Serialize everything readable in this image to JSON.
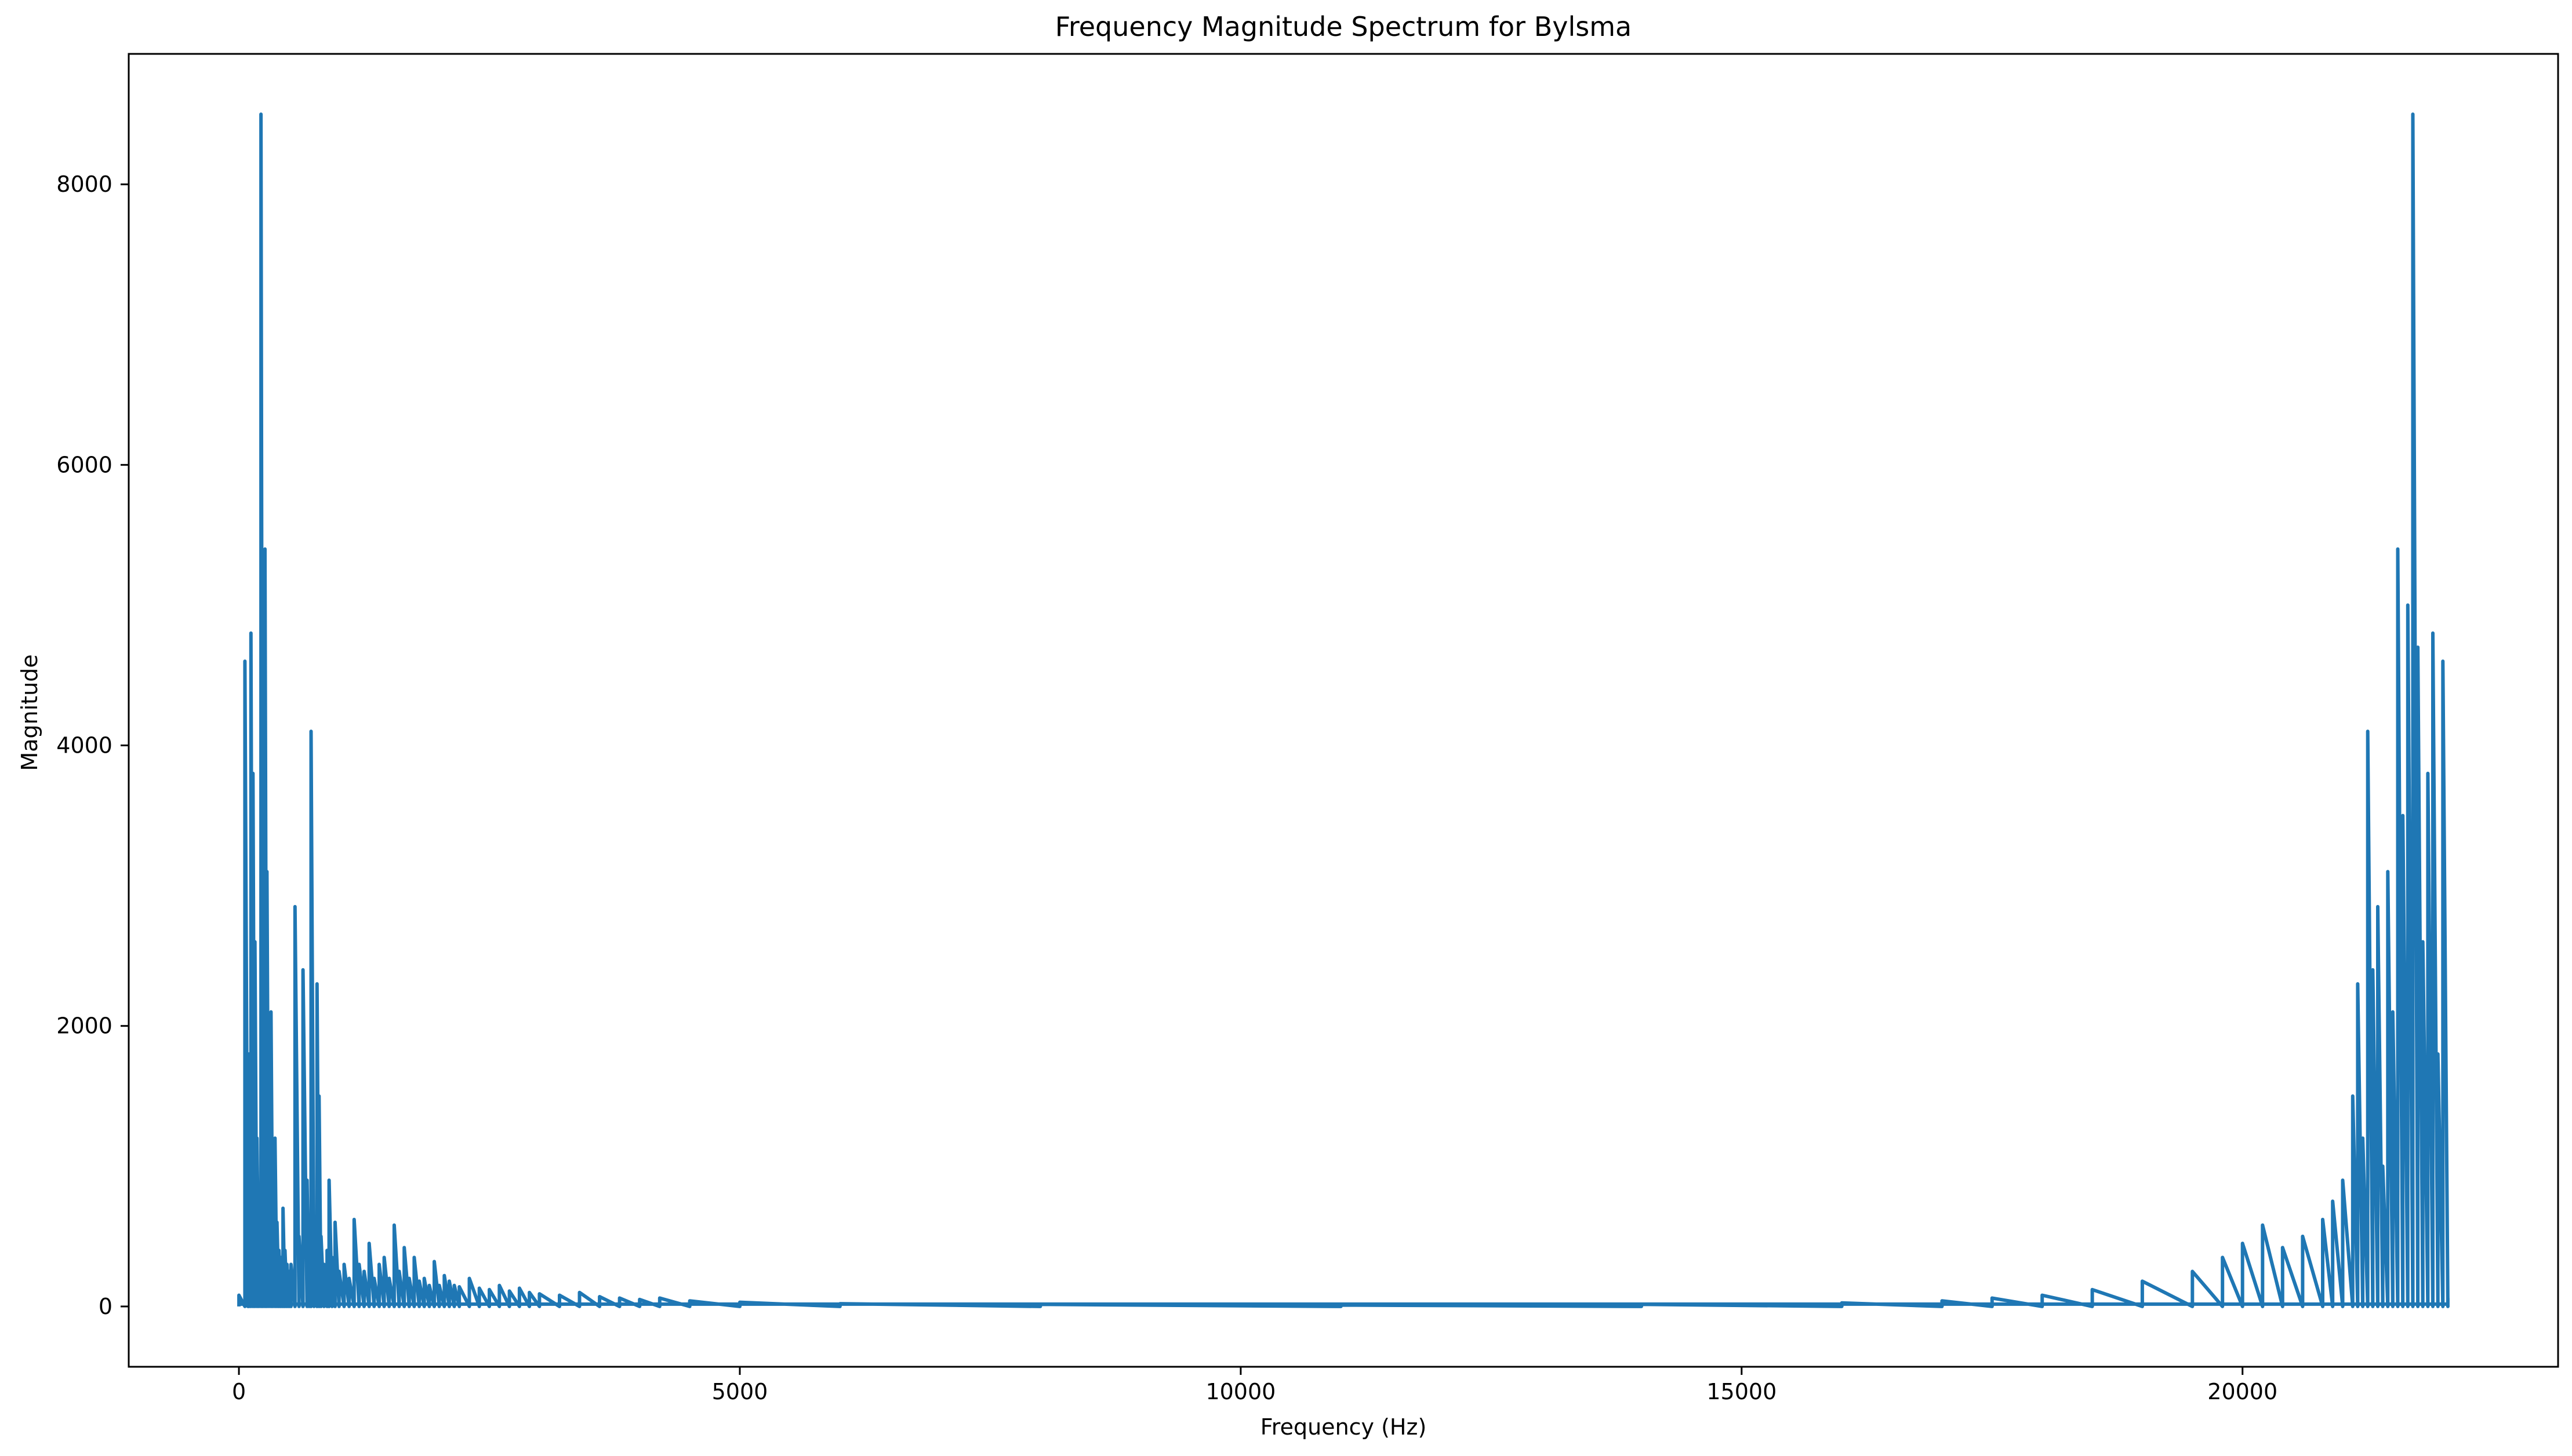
{
  "chart_data": {
    "type": "line",
    "title": "Frequency Magnitude Spectrum for Bylsma",
    "xlabel": "Frequency (Hz)",
    "ylabel": "Magnitude",
    "xlim": [
      -1100,
      23150
    ],
    "ylim": [
      -430,
      8930
    ],
    "xticks": [
      0,
      5000,
      10000,
      15000,
      20000
    ],
    "yticks": [
      0,
      2000,
      4000,
      6000,
      8000
    ],
    "grid": false,
    "legend": "none",
    "color": "#1f77b4",
    "series": [
      {
        "x": [
          0,
          60,
          90,
          100,
          120,
          140,
          160,
          180,
          200,
          220,
          240,
          260,
          280,
          300,
          320,
          340,
          360,
          380,
          400,
          420,
          440,
          460,
          480,
          500,
          520,
          560,
          600,
          640,
          680,
          700,
          720,
          750,
          780,
          800,
          820,
          850,
          880,
          900,
          930,
          960,
          1000,
          1050,
          1100,
          1150,
          1200,
          1250,
          1300,
          1350,
          1400,
          1450,
          1500,
          1550,
          1600,
          1650,
          1700,
          1750,
          1800,
          1850,
          1900,
          1950,
          2000,
          2050,
          2100,
          2150,
          2200,
          2300,
          2400,
          2500,
          2600,
          2700,
          2800,
          2900,
          3000,
          3200,
          3400,
          3600,
          3800,
          4000,
          4200,
          4500,
          5000,
          6000,
          8000,
          11000,
          14000,
          16000,
          17000,
          17500,
          18000,
          18500,
          19000,
          19500,
          19800,
          20000,
          20200,
          20400,
          20600,
          20800,
          20900,
          21000,
          21100,
          21150,
          21200,
          21250,
          21300,
          21350,
          21400,
          21450,
          21500,
          21550,
          21600,
          21650,
          21700,
          21750,
          21800,
          21850,
          21900,
          21950,
          22000,
          22050
        ],
        "y": [
          80,
          4600,
          200,
          1800,
          4800,
          3800,
          2600,
          1200,
          800,
          8500,
          5000,
          5400,
          3100,
          1500,
          2100,
          900,
          1200,
          600,
          400,
          350,
          700,
          400,
          300,
          250,
          300,
          2850,
          500,
          2400,
          900,
          400,
          4100,
          600,
          2300,
          1500,
          500,
          300,
          400,
          900,
          350,
          600,
          250,
          300,
          200,
          620,
          300,
          250,
          450,
          200,
          300,
          350,
          200,
          580,
          250,
          420,
          200,
          350,
          180,
          200,
          150,
          320,
          150,
          220,
          180,
          150,
          140,
          200,
          130,
          120,
          150,
          110,
          130,
          100,
          90,
          80,
          100,
          70,
          60,
          50,
          60,
          40,
          30,
          20,
          15,
          10,
          15,
          25,
          40,
          60,
          80,
          120,
          180,
          250,
          350,
          450,
          580,
          420,
          500,
          620,
          750,
          900,
          1500,
          2300,
          1200,
          4100,
          2400,
          2850,
          1000,
          3100,
          2100,
          5400,
          3500,
          5000,
          8500,
          4700,
          2600,
          3800,
          4800,
          1800,
          4600,
          60
        ]
      }
    ]
  }
}
